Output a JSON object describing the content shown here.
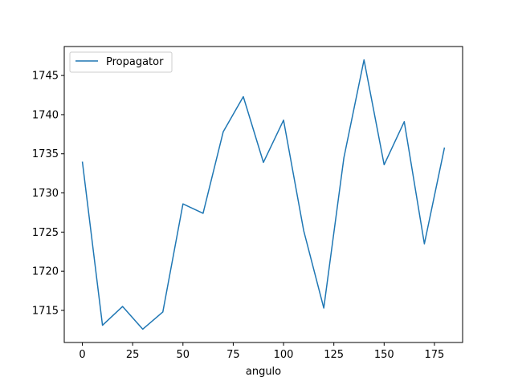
{
  "chart_data": {
    "type": "line",
    "title": "",
    "xlabel": "angulo",
    "ylabel": "",
    "x": [
      0,
      10,
      20,
      30,
      40,
      50,
      60,
      70,
      80,
      90,
      100,
      110,
      120,
      130,
      140,
      150,
      160,
      170,
      180
    ],
    "series": [
      {
        "name": "Propagator",
        "color": "#1f77b4",
        "values": [
          1734.0,
          1713.1,
          1715.5,
          1712.6,
          1714.8,
          1728.6,
          1727.4,
          1737.8,
          1742.3,
          1733.9,
          1739.3,
          1725.2,
          1715.3,
          1734.5,
          1747.0,
          1733.6,
          1739.1,
          1723.5,
          1735.8
        ]
      }
    ],
    "xlim": [
      -9,
      189
    ],
    "ylim": [
      1710.9,
      1748.7
    ],
    "xticks": [
      0,
      25,
      50,
      75,
      100,
      125,
      150,
      175
    ],
    "yticks": [
      1715,
      1720,
      1725,
      1730,
      1735,
      1740,
      1745
    ],
    "grid": false,
    "legend": "top-left"
  }
}
